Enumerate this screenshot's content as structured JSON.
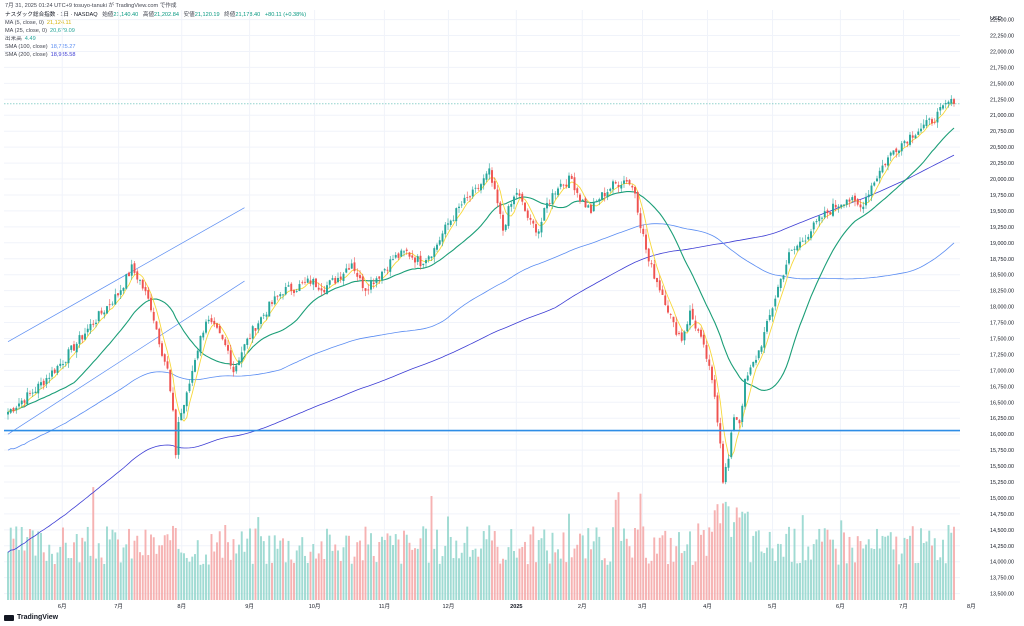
{
  "header": {
    "title": "7月 31, 2025 01:24 UTC+9  tosuyo-tanuki が TradingView.com で作成",
    "symbol_line": "ナスダック総合指数 · 1日 · NASDAQ",
    "open_label": "始値",
    "open": "21,140.40",
    "high_label": "高値",
    "high": "21,202.84",
    "low_label": "安値",
    "low": "21,120.19",
    "close_label": "終値",
    "close": "21,178.40",
    "change": "+80.11 (+0.38%)"
  },
  "indicators": [
    {
      "label": "MA (5, close, 0)",
      "value": "21,124.11",
      "color": "#f7d83a"
    },
    {
      "label": "MA (25, close, 0)",
      "value": "20,679.09",
      "color": "#26a69a"
    },
    {
      "label": "出来高",
      "value": "4.49",
      "color": "#26a69a"
    },
    {
      "label": "SMA (100, close)",
      "value": "18,725.27",
      "color": "#5b8df2"
    },
    {
      "label": "SMA (200, close)",
      "value": "18,985.58",
      "color": "#3d3dd4"
    }
  ],
  "branding": {
    "logo_text": "TradingView"
  },
  "chart_data": {
    "type": "candlestick",
    "currency": "USD",
    "y_ticks": [
      "13,500.00",
      "13,750.00",
      "14,000.00",
      "14,250.00",
      "14,500.00",
      "14,750.00",
      "15,000.00",
      "15,250.00",
      "15,500.00",
      "15,750.00",
      "16,000.00",
      "16,250.00",
      "16,500.00",
      "16,750.00",
      "17,000.00",
      "17,250.00",
      "17,500.00",
      "17,750.00",
      "18,000.00",
      "18,250.00",
      "18,500.00",
      "18,750.00",
      "19,000.00",
      "19,250.00",
      "19,500.00",
      "19,750.00",
      "20,000.00",
      "20,250.00",
      "20,500.00",
      "20,750.00",
      "21,000.00",
      "21,250.00",
      "21,500.00",
      "21,750.00",
      "22,000.00",
      "22,250.00",
      "22,500.00"
    ],
    "ylim": [
      13400,
      22650
    ],
    "x_ticks": [
      {
        "label": "6月",
        "pos": 0.063
      },
      {
        "label": "7月",
        "pos": 0.122
      },
      {
        "label": "8月",
        "pos": 0.188
      },
      {
        "label": "9月",
        "pos": 0.259
      },
      {
        "label": "10月",
        "pos": 0.327
      },
      {
        "label": "11月",
        "pos": 0.4
      },
      {
        "label": "12月",
        "pos": 0.467
      },
      {
        "label": "2025",
        "pos": 0.538
      },
      {
        "label": "2月",
        "pos": 0.607
      },
      {
        "label": "3月",
        "pos": 0.67
      },
      {
        "label": "4月",
        "pos": 0.738
      },
      {
        "label": "5月",
        "pos": 0.806
      },
      {
        "label": "6月",
        "pos": 0.877
      },
      {
        "label": "7月",
        "pos": 0.943
      },
      {
        "label": "8月",
        "pos": 1.014
      }
    ],
    "last_price": {
      "label": "IXIC",
      "value": "21,178.40",
      "countdown": "06:50:28",
      "price": 21178.4
    },
    "support_line": {
      "price": 16055.84,
      "label": "16,055.84"
    },
    "close_anchors": [
      [
        0,
        16350
      ],
      [
        10,
        16700
      ],
      [
        20,
        17150
      ],
      [
        30,
        17700
      ],
      [
        40,
        18200
      ],
      [
        45,
        18600
      ],
      [
        48,
        18400
      ],
      [
        52,
        18000
      ],
      [
        56,
        17300
      ],
      [
        58,
        17000
      ],
      [
        60,
        16300
      ],
      [
        61,
        15700
      ],
      [
        62,
        16200
      ],
      [
        65,
        16600
      ],
      [
        68,
        17200
      ],
      [
        72,
        17800
      ],
      [
        76,
        17600
      ],
      [
        80,
        17300
      ],
      [
        82,
        17000
      ],
      [
        85,
        17300
      ],
      [
        90,
        17700
      ],
      [
        95,
        18000
      ],
      [
        100,
        18250
      ],
      [
        105,
        18300
      ],
      [
        110,
        18400
      ],
      [
        115,
        18300
      ],
      [
        120,
        18450
      ],
      [
        125,
        18700
      ],
      [
        128,
        18400
      ],
      [
        130,
        18300
      ],
      [
        135,
        18500
      ],
      [
        140,
        18750
      ],
      [
        145,
        18850
      ],
      [
        150,
        18700
      ],
      [
        155,
        18900
      ],
      [
        160,
        19300
      ],
      [
        165,
        19600
      ],
      [
        170,
        19800
      ],
      [
        175,
        20100
      ],
      [
        178,
        19600
      ],
      [
        180,
        19200
      ],
      [
        182,
        19500
      ],
      [
        185,
        19800
      ],
      [
        190,
        19300
      ],
      [
        193,
        19200
      ],
      [
        196,
        19600
      ],
      [
        200,
        19900
      ],
      [
        205,
        20000
      ],
      [
        208,
        19700
      ],
      [
        212,
        19500
      ],
      [
        215,
        19700
      ],
      [
        220,
        19900
      ],
      [
        225,
        20000
      ],
      [
        228,
        19800
      ],
      [
        230,
        19300
      ],
      [
        233,
        18700
      ],
      [
        236,
        18400
      ],
      [
        239,
        18100
      ],
      [
        242,
        17700
      ],
      [
        245,
        17500
      ],
      [
        248,
        17900
      ],
      [
        251,
        17600
      ],
      [
        254,
        17200
      ],
      [
        257,
        16600
      ],
      [
        259,
        15900
      ],
      [
        260,
        15300
      ],
      [
        262,
        15600
      ],
      [
        264,
        16300
      ],
      [
        266,
        16200
      ],
      [
        268,
        16800
      ],
      [
        270,
        17000
      ],
      [
        273,
        17300
      ],
      [
        276,
        17700
      ],
      [
        280,
        18300
      ],
      [
        284,
        18800
      ],
      [
        288,
        19000
      ],
      [
        292,
        19200
      ],
      [
        296,
        19400
      ],
      [
        300,
        19550
      ],
      [
        305,
        19700
      ],
      [
        310,
        19550
      ],
      [
        314,
        19900
      ],
      [
        318,
        20200
      ],
      [
        322,
        20450
      ],
      [
        326,
        20600
      ],
      [
        330,
        20750
      ],
      [
        334,
        20850
      ],
      [
        338,
        21000
      ],
      [
        342,
        21200
      ],
      [
        344,
        21178
      ]
    ],
    "ma_params": [
      5,
      25
    ],
    "sma_params": [
      100,
      200
    ],
    "regression_channel": {
      "upper": [
        [
          0,
          17450
        ],
        [
          86,
          19550
        ]
      ],
      "lower": [
        [
          0,
          16000
        ],
        [
          86,
          18400
        ]
      ]
    },
    "volume_scale_note": "出来高"
  }
}
